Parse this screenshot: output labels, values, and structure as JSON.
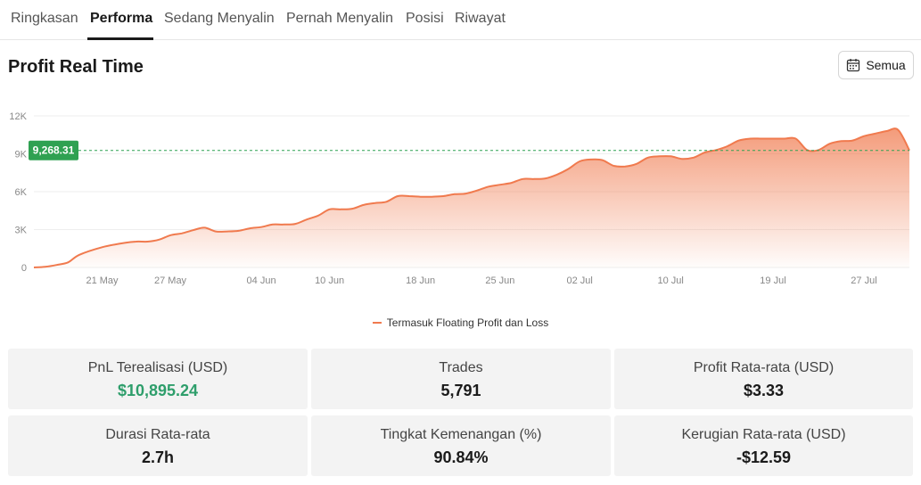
{
  "tabs": [
    {
      "label": "Ringkasan"
    },
    {
      "label": "Performa"
    },
    {
      "label": "Sedang Menyalin"
    },
    {
      "label": "Pernah Menyalin"
    },
    {
      "label": "Posisi"
    },
    {
      "label": "Riwayat"
    }
  ],
  "active_tab": "Performa",
  "section": {
    "title": "Profit Real Time",
    "range_button": "Semua",
    "range_icon": "calendar-icon"
  },
  "chart_data": {
    "type": "area",
    "title": "",
    "current_value_label": "9,268.31",
    "current_value": 9268.31,
    "ylim": [
      0,
      12000
    ],
    "y_ticks": [
      {
        "value": 0,
        "label": "0"
      },
      {
        "value": 3000,
        "label": "3K"
      },
      {
        "value": 6000,
        "label": "6K"
      },
      {
        "value": 9000,
        "label": "9K"
      },
      {
        "value": 12000,
        "label": "12K"
      }
    ],
    "x_ticks": [
      {
        "day": 6,
        "label": "21 May"
      },
      {
        "day": 12,
        "label": "27 May"
      },
      {
        "day": 20,
        "label": "04 Jun"
      },
      {
        "day": 26,
        "label": "10 Jun"
      },
      {
        "day": 34,
        "label": "18 Jun"
      },
      {
        "day": 41,
        "label": "25 Jun"
      },
      {
        "day": 48,
        "label": "02 Jul"
      },
      {
        "day": 56,
        "label": "10 Jul"
      },
      {
        "day": 65,
        "label": "19 Jul"
      },
      {
        "day": 73,
        "label": "27 Jul"
      }
    ],
    "xlim": [
      0,
      77
    ],
    "series": [
      {
        "name": "Termasuk Floating Profit dan Loss",
        "color": "#f07a4e",
        "x": [
          0,
          1,
          2,
          3,
          4,
          6,
          8,
          9,
          10,
          11,
          12,
          13,
          14,
          15,
          16,
          17,
          18,
          19,
          20,
          21,
          22,
          23,
          24,
          25,
          26,
          27,
          28,
          29,
          30,
          31,
          32,
          33,
          34,
          35,
          36,
          37,
          38,
          39,
          40,
          41,
          42,
          43,
          44,
          45,
          46,
          47,
          48,
          49,
          50,
          51,
          52,
          53,
          54,
          55,
          56,
          57,
          58,
          59,
          60,
          61,
          62,
          63,
          64,
          65,
          66,
          67,
          68,
          69,
          70,
          71,
          72,
          73,
          74,
          75,
          76,
          77
        ],
        "y": [
          0,
          50,
          200,
          400,
          1000,
          1600,
          1950,
          2050,
          2050,
          2200,
          2550,
          2700,
          2950,
          3150,
          2850,
          2850,
          2900,
          3100,
          3200,
          3400,
          3400,
          3450,
          3800,
          4100,
          4600,
          4600,
          4650,
          4950,
          5100,
          5200,
          5650,
          5650,
          5600,
          5600,
          5650,
          5800,
          5850,
          6100,
          6400,
          6550,
          6700,
          7000,
          7000,
          7050,
          7350,
          7800,
          8400,
          8550,
          8500,
          8050,
          8000,
          8200,
          8700,
          8800,
          8800,
          8600,
          8700,
          9100,
          9300,
          9600,
          10050,
          10200,
          10200,
          10200,
          10200,
          10200,
          9300,
          9300,
          9800,
          10000,
          10050,
          10400,
          10600,
          10800,
          10900,
          9268.31
        ]
      }
    ],
    "grid": true,
    "legend": "bottom-center"
  },
  "stats": [
    {
      "label": "PnL Terealisasi (USD)",
      "value": "$10,895.24",
      "positive": true
    },
    {
      "label": "Trades",
      "value": "5,791"
    },
    {
      "label": "Profit Rata-rata (USD)",
      "value": "$3.33"
    },
    {
      "label": "Durasi Rata-rata",
      "value": "2.7h"
    },
    {
      "label": "Tingkat Kemenangan (%)",
      "value": "90.84%"
    },
    {
      "label": "Kerugian Rata-rata (USD)",
      "value": "-$12.59"
    }
  ],
  "colors": {
    "accent": "#f07a4e",
    "positive": "#2e9e6b",
    "marker": "#2fa152"
  }
}
